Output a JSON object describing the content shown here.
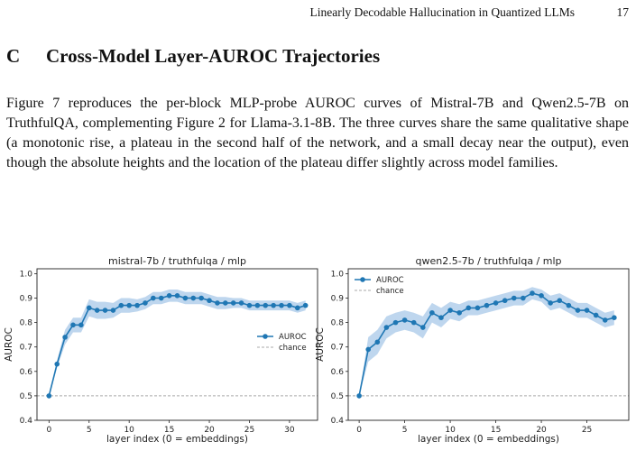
{
  "running_head": {
    "title": "Linearly Decodable Hallucination in Quantized LLMs",
    "page_number": "17"
  },
  "section": {
    "number": "C",
    "title": "Cross-Model Layer-AUROC Trajectories"
  },
  "paragraph": "Figure 7 reproduces the per-block MLP-probe AUROC curves of Mistral-7B and Qwen2.5-7B on TruthfulQA, complementing Figure 2 for Llama-3.1-8B. The three curves share the same qualitative shape (a monotonic rise, a plateau in the second half of the network, and a small decay near the output), even though the absolute heights and the location of the plateau differ slightly across model families.",
  "colors": {
    "line": "#1f77b4",
    "band": "#a8c8e8",
    "chance": "#aaaaaa"
  },
  "chart_data": [
    {
      "type": "line",
      "title": "mistral-7b / truthfulqa / mlp",
      "xlabel": "layer index (0 = embeddings)",
      "ylabel": "AUROC",
      "xlim": [
        -1.5,
        33.5
      ],
      "ylim": [
        0.4,
        1.02
      ],
      "xticks": [
        0,
        5,
        10,
        15,
        20,
        25,
        30
      ],
      "yticks": [
        0.4,
        0.5,
        0.6,
        0.7,
        0.8,
        0.9,
        1.0
      ],
      "ytick_labels": [
        "0.4",
        "0.5",
        "0.6",
        "0.7",
        "0.8",
        "0.9",
        "1.0"
      ],
      "legend_position": "center-right",
      "legend": [
        "AUROC",
        "chance"
      ],
      "chance": 0.5,
      "x": [
        0,
        1,
        2,
        3,
        4,
        5,
        6,
        7,
        8,
        9,
        10,
        11,
        12,
        13,
        14,
        15,
        16,
        17,
        18,
        19,
        20,
        21,
        22,
        23,
        24,
        25,
        26,
        27,
        28,
        29,
        30,
        31,
        32
      ],
      "y": [
        0.5,
        0.63,
        0.74,
        0.79,
        0.79,
        0.86,
        0.85,
        0.85,
        0.85,
        0.87,
        0.87,
        0.87,
        0.88,
        0.9,
        0.9,
        0.91,
        0.91,
        0.9,
        0.9,
        0.9,
        0.89,
        0.88,
        0.88,
        0.88,
        0.88,
        0.87,
        0.87,
        0.87,
        0.87,
        0.87,
        0.87,
        0.86,
        0.87
      ],
      "band": [
        0.0,
        0.015,
        0.03,
        0.03,
        0.03,
        0.035,
        0.035,
        0.035,
        0.03,
        0.03,
        0.03,
        0.025,
        0.025,
        0.025,
        0.025,
        0.025,
        0.025,
        0.025,
        0.025,
        0.025,
        0.025,
        0.025,
        0.025,
        0.02,
        0.02,
        0.02,
        0.02,
        0.02,
        0.02,
        0.02,
        0.02,
        0.02,
        0.02
      ]
    },
    {
      "type": "line",
      "title": "qwen2.5-7b / truthfulqa / mlp",
      "xlabel": "layer index (0 = embeddings)",
      "ylabel": "AUROC",
      "xlim": [
        -1.2,
        29.6
      ],
      "ylim": [
        0.4,
        1.02
      ],
      "xticks": [
        0,
        5,
        10,
        15,
        20,
        25
      ],
      "yticks": [
        0.4,
        0.5,
        0.6,
        0.7,
        0.8,
        0.9,
        1.0
      ],
      "ytick_labels": [
        "0.4",
        "0.5",
        "0.6",
        "0.7",
        "0.8",
        "0.9",
        "1.0"
      ],
      "legend_position": "top-left",
      "legend": [
        "AUROC",
        "chance"
      ],
      "chance": 0.5,
      "x": [
        0,
        1,
        2,
        3,
        4,
        5,
        6,
        7,
        8,
        9,
        10,
        11,
        12,
        13,
        14,
        15,
        16,
        17,
        18,
        19,
        20,
        21,
        22,
        23,
        24,
        25,
        26,
        27,
        28
      ],
      "y": [
        0.5,
        0.69,
        0.72,
        0.78,
        0.8,
        0.81,
        0.8,
        0.78,
        0.84,
        0.82,
        0.85,
        0.84,
        0.86,
        0.86,
        0.87,
        0.88,
        0.89,
        0.9,
        0.9,
        0.92,
        0.91,
        0.88,
        0.89,
        0.87,
        0.85,
        0.85,
        0.83,
        0.81,
        0.82
      ],
      "band": [
        0.0,
        0.05,
        0.05,
        0.045,
        0.04,
        0.04,
        0.04,
        0.045,
        0.04,
        0.04,
        0.035,
        0.035,
        0.03,
        0.03,
        0.03,
        0.03,
        0.03,
        0.03,
        0.03,
        0.025,
        0.025,
        0.03,
        0.03,
        0.03,
        0.03,
        0.03,
        0.03,
        0.03,
        0.03
      ]
    }
  ]
}
